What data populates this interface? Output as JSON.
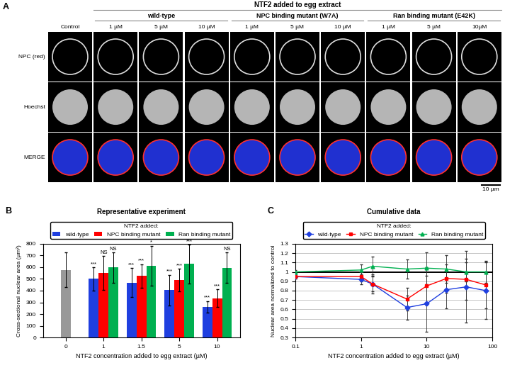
{
  "panel_a": {
    "label": "A",
    "header": "NTF2 added to egg extract",
    "control": "Control",
    "groups": [
      {
        "name": "wild-type",
        "columns": [
          "1 µM",
          "5 µM",
          "10 µM"
        ]
      },
      {
        "name": "NPC binding mutant (W7A)",
        "columns": [
          "1 µM",
          "5 µM",
          "10 µM"
        ]
      },
      {
        "name": "Ran binding mutant (E42K)",
        "columns": [
          "1 µM",
          "5 µM",
          "10µM"
        ]
      }
    ],
    "rows": [
      "NPC (red)",
      "Hoechst",
      "MERGE"
    ],
    "scale_bar": "10 µm"
  },
  "chart_data": [
    {
      "panel_label": "B",
      "type": "bar",
      "title": "Representative experiment",
      "legend_title": "NTF2 added:",
      "legend": "top",
      "x_label": "NTF2 concentration added to egg extract (µM)",
      "y_label": "Cross-sectional nuclear area (µm²)",
      "categories": [
        "0",
        "1",
        "1.5",
        "5",
        "10"
      ],
      "series": [
        {
          "color": "#999999",
          "values": [
            578,
            null,
            null,
            null,
            null
          ],
          "errors": [
            150,
            null,
            null,
            null,
            null
          ]
        },
        {
          "name": "wild-type",
          "color": "#1f3fe0",
          "values": [
            null,
            500,
            468,
            405,
            260
          ],
          "errors": [
            null,
            100,
            125,
            130,
            50
          ],
          "significance": [
            null,
            "***",
            "***",
            "***",
            "***"
          ]
        },
        {
          "name": "NPC binding mutant",
          "color": "#ff0000",
          "values": [
            null,
            553,
            525,
            490,
            335
          ],
          "errors": [
            null,
            145,
            100,
            95,
            75
          ],
          "significance": [
            null,
            "NS",
            "***",
            "***",
            "***"
          ]
        },
        {
          "name": "Ran binding mutant",
          "color": "#00b050",
          "values": [
            null,
            598,
            612,
            628,
            595
          ],
          "errors": [
            null,
            130,
            170,
            165,
            130
          ],
          "significance": [
            null,
            "NS",
            "*",
            "***",
            "NS"
          ]
        }
      ],
      "ylim": [
        0,
        800
      ],
      "yticks": [
        0,
        100,
        200,
        300,
        400,
        500,
        600,
        700,
        800
      ]
    },
    {
      "panel_label": "C",
      "type": "line",
      "title": "Cumulative data",
      "legend_title": "NTF2 added:",
      "legend": "top",
      "x_label": "NTF2 concentration added to egg extract (µM)",
      "y_label": "Nuclear area normalized to control",
      "x": [
        0.1,
        1,
        1.5,
        5,
        10,
        20,
        40,
        80
      ],
      "series": [
        {
          "name": "wild-type",
          "color": "#1f3fe0",
          "marker": "diamond",
          "line_style": "solid",
          "values": [
            0.95,
            0.92,
            0.87,
            0.62,
            0.66,
            0.81,
            0.84,
            0.8
          ],
          "errors": [
            0.02,
            0.05,
            0.1,
            0.13,
            0.3,
            0.2,
            0.38,
            0.3
          ]
        },
        {
          "name": "NPC binding mutant",
          "color": "#ff0000",
          "marker": "square",
          "line_style": "solid",
          "values": [
            0.95,
            0.95,
            0.87,
            0.71,
            0.85,
            0.93,
            0.92,
            0.86
          ],
          "errors": [
            0.02,
            0.05,
            0.08,
            0.12,
            0.2,
            0.15,
            0.22,
            0.25
          ]
        },
        {
          "name": "Ran binding mutant",
          "color": "#00b050",
          "marker": "triangle",
          "line_style": "solid",
          "values": [
            1.0,
            1.02,
            1.06,
            1.03,
            1.04,
            1.03,
            1.0,
            1.0
          ],
          "errors": [
            0.02,
            0.06,
            0.1,
            0.1,
            0.17,
            0.15,
            0.1,
            0.12
          ]
        }
      ],
      "reference_y": 1,
      "log": "x",
      "xlim": [
        0.1,
        100
      ],
      "xticks": [
        0.1,
        1,
        10,
        100
      ],
      "ylim": [
        0.3,
        1.3
      ],
      "yticks": [
        0.3,
        0.4,
        0.5,
        0.6,
        0.7,
        0.8,
        0.9,
        1,
        1.1,
        1.2,
        1.3
      ],
      "grid": true
    }
  ]
}
